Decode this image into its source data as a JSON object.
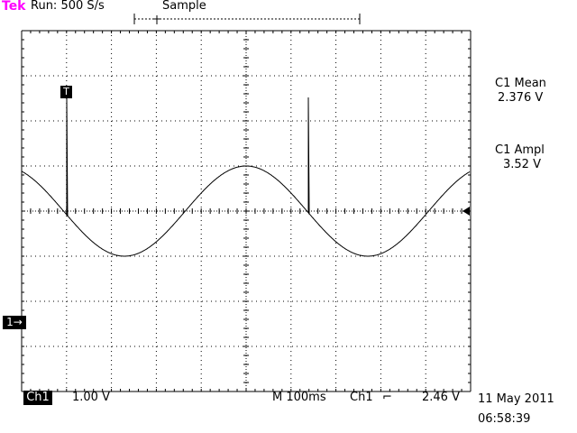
{
  "header": {
    "brand": "Tek",
    "run_status": "Run: 500 S/s",
    "acquisition_mode": "Sample"
  },
  "trigger_marker": "T",
  "channel_marker": "1→",
  "measurements": [
    {
      "label": "C1 Mean",
      "value": "2.376 V"
    },
    {
      "label": "C1 Ampl",
      "value": "3.52 V"
    }
  ],
  "footer": {
    "channel": "Ch1",
    "volts_per_div": "1.00 V",
    "timebase": "M 100ms",
    "trigger_source": "Ch1",
    "trigger_slope": "⌐",
    "trigger_level": "2.46 V",
    "date": "11 May 2011",
    "time": "06:58:39"
  },
  "colors": {
    "brand": "#ff00ff",
    "trace": "#000000",
    "background": "#ffffff"
  }
}
